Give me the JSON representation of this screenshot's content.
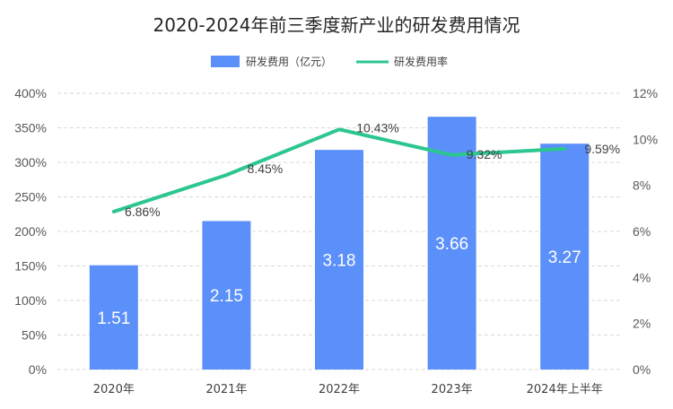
{
  "chart_data": {
    "type": "bar",
    "title": "2020-2024年前三季度新产业的研发费用情况",
    "categories": [
      "2020年",
      "2021年",
      "2022年",
      "2023年",
      "2024年上半年"
    ],
    "series": [
      {
        "name": "研发费用（亿元）",
        "type": "bar",
        "axis": "left",
        "values": [
          1.51,
          2.15,
          3.18,
          3.66,
          3.27
        ],
        "labels": [
          "1.51",
          "2.15",
          "3.18",
          "3.66",
          "3.27"
        ],
        "color": "#5B8FF9"
      },
      {
        "name": "研发费用率",
        "type": "line",
        "axis": "right",
        "values": [
          6.86,
          8.45,
          10.43,
          9.32,
          9.59
        ],
        "labels": [
          "6.86%",
          "8.45%",
          "10.43%",
          "9.32%",
          "9.59%"
        ],
        "color": "#2CC68F"
      }
    ],
    "y_left": {
      "ylim": [
        0,
        4
      ],
      "ticks": [
        0,
        0.5,
        1,
        1.5,
        2,
        2.5,
        3,
        3.5,
        4
      ],
      "tick_labels": [
        "0%",
        "50%",
        "100%",
        "150%",
        "200%",
        "250%",
        "300%",
        "350%",
        "400%"
      ]
    },
    "y_right": {
      "ylim": [
        0,
        12
      ],
      "ticks": [
        0,
        2,
        4,
        6,
        8,
        10,
        12
      ],
      "tick_labels": [
        "0%",
        "2%",
        "4%",
        "6%",
        "8%",
        "10%",
        "12%"
      ]
    },
    "grid": true,
    "legend_position": "top-center"
  }
}
